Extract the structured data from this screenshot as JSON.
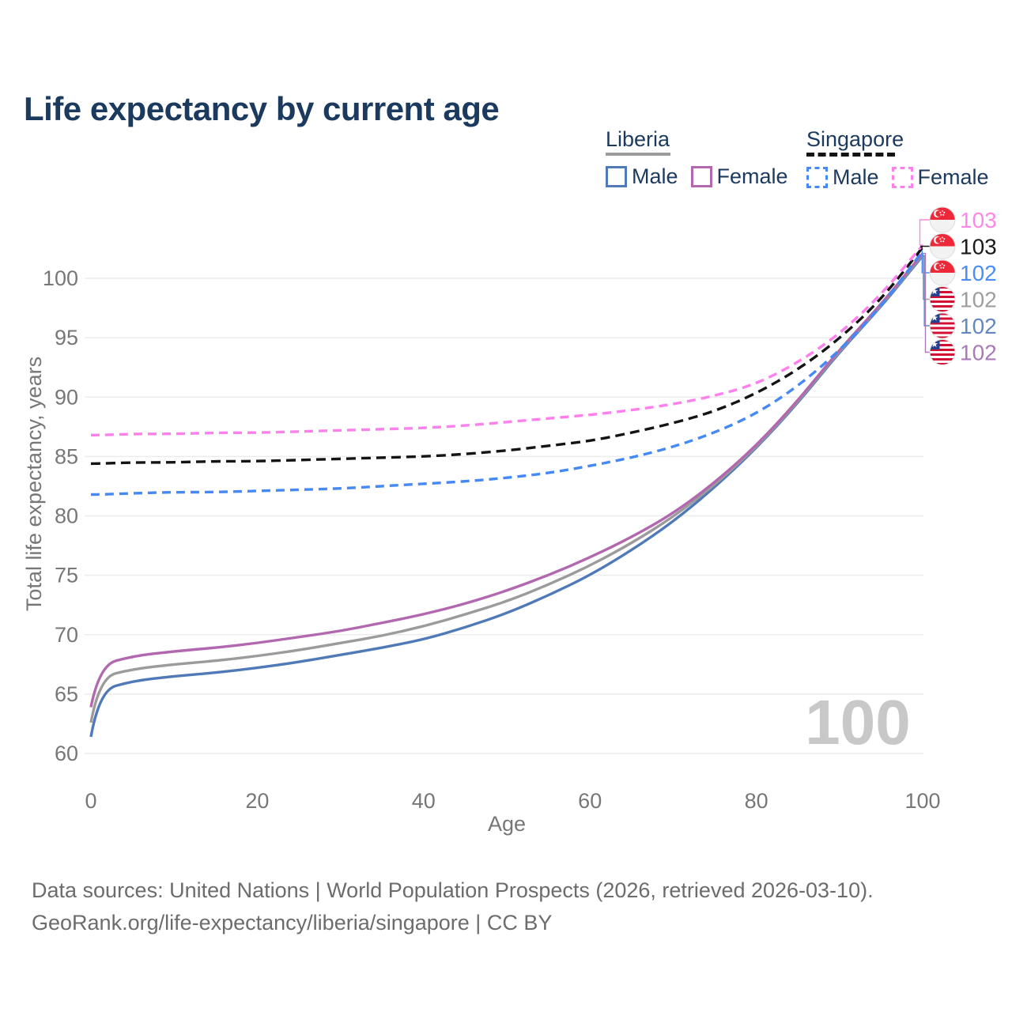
{
  "title": "Life expectancy by current age",
  "watermark_age": "100",
  "legend": {
    "groups": [
      {
        "name": "Liberia",
        "line_style": "solid",
        "underline_color": "#9b9b9b",
        "items": [
          {
            "label": "Male",
            "color": "#4f79b7"
          },
          {
            "label": "Female",
            "color": "#b168af"
          }
        ]
      },
      {
        "name": "Singapore",
        "line_style": "dashed",
        "underline_color": "#141414",
        "items": [
          {
            "label": "Male",
            "color": "#4489f6"
          },
          {
            "label": "Female",
            "color": "#ff7fec"
          }
        ]
      }
    ]
  },
  "footer": {
    "line1": "Data sources: United Nations | World Population Prospects (2026, retrieved 2026-03-10).",
    "line2": "GeoRank.org/life-expectancy/liberia/singapore | CC BY"
  },
  "chart_data": {
    "type": "line",
    "title": "Life expectancy by current age",
    "xlabel": "Age",
    "ylabel": "Total life expectancy, years",
    "x_ticks": [
      0,
      20,
      40,
      60,
      80,
      100
    ],
    "y_ticks": [
      60,
      65,
      70,
      75,
      80,
      85,
      90,
      95,
      100
    ],
    "xlim": [
      0,
      100
    ],
    "ylim": [
      60,
      100
    ],
    "grid": "horizontal",
    "legend_position": "top-right",
    "ages": [
      0,
      1,
      5,
      10,
      15,
      20,
      25,
      30,
      35,
      40,
      45,
      50,
      55,
      60,
      65,
      70,
      75,
      80,
      85,
      90,
      95,
      100
    ],
    "series": [
      {
        "name": "Liberia Male",
        "country": "Liberia",
        "sex": "Male",
        "line_style": "solid",
        "color": "#4f79b7",
        "end_value_label": "102",
        "values": [
          61.4,
          65.3,
          66.1,
          66.5,
          66.8,
          67.2,
          67.7,
          68.3,
          68.9,
          69.6,
          70.6,
          71.8,
          73.3,
          75.0,
          77.1,
          79.5,
          82.4,
          85.7,
          89.5,
          93.8,
          97.6,
          101.9
        ]
      },
      {
        "name": "Liberia (both sexes)",
        "country": "Liberia",
        "sex": "Both",
        "line_style": "solid",
        "color": "#9b9b9b",
        "end_value_label": "102",
        "values": [
          62.6,
          66.4,
          67.1,
          67.5,
          67.8,
          68.2,
          68.7,
          69.3,
          69.9,
          70.7,
          71.7,
          72.8,
          74.2,
          75.8,
          77.7,
          79.9,
          82.6,
          85.8,
          89.6,
          93.9,
          97.7,
          102.0
        ]
      },
      {
        "name": "Liberia Female",
        "country": "Liberia",
        "sex": "Female",
        "line_style": "solid",
        "color": "#b168af",
        "end_value_label": "102",
        "values": [
          63.9,
          67.4,
          68.2,
          68.6,
          68.9,
          69.3,
          69.8,
          70.3,
          71.0,
          71.7,
          72.6,
          73.7,
          75.0,
          76.5,
          78.2,
          80.2,
          82.8,
          85.9,
          89.7,
          94.0,
          97.8,
          102.1
        ]
      },
      {
        "name": "Singapore Male",
        "country": "Singapore",
        "sex": "Male",
        "line_style": "dashed",
        "color": "#4489f6",
        "end_value_label": "102",
        "values": [
          81.8,
          81.8,
          81.9,
          82.0,
          82.0,
          82.1,
          82.2,
          82.3,
          82.5,
          82.7,
          82.9,
          83.2,
          83.6,
          84.2,
          84.9,
          85.8,
          87.0,
          88.6,
          90.9,
          93.9,
          97.6,
          102.3
        ]
      },
      {
        "name": "Singapore (both sexes)",
        "country": "Singapore",
        "sex": "Both",
        "line_style": "dashed",
        "color": "#141414",
        "end_value_label": "103",
        "values": [
          84.4,
          84.4,
          84.5,
          84.5,
          84.6,
          84.6,
          84.7,
          84.8,
          84.9,
          85.0,
          85.2,
          85.5,
          85.9,
          86.3,
          87.0,
          87.8,
          88.8,
          90.3,
          92.3,
          94.9,
          98.2,
          102.6
        ]
      },
      {
        "name": "Singapore Female",
        "country": "Singapore",
        "sex": "Female",
        "line_style": "dashed",
        "color": "#ff7fec",
        "end_value_label": "103",
        "values": [
          86.8,
          86.8,
          86.9,
          86.9,
          87.0,
          87.0,
          87.1,
          87.2,
          87.3,
          87.4,
          87.6,
          87.9,
          88.2,
          88.5,
          88.9,
          89.4,
          90.1,
          91.1,
          92.9,
          95.3,
          98.6,
          102.8
        ]
      }
    ],
    "right_labels": [
      {
        "text": "103",
        "flag": "singapore",
        "color": "#fd87e9",
        "series": "Singapore Female"
      },
      {
        "text": "103",
        "flag": "singapore",
        "color": "#1a1a1a",
        "series": "Singapore (both sexes)"
      },
      {
        "text": "102",
        "flag": "singapore",
        "color": "#4a8ef5",
        "series": "Singapore Male"
      },
      {
        "text": "102",
        "flag": "liberia",
        "color": "#9e9e9e",
        "series": "Liberia (both sexes)"
      },
      {
        "text": "102",
        "flag": "liberia",
        "color": "#6288c2",
        "series": "Liberia Male"
      },
      {
        "text": "102",
        "flag": "liberia",
        "color": "#a87ab8",
        "series": "Liberia Female"
      }
    ]
  }
}
